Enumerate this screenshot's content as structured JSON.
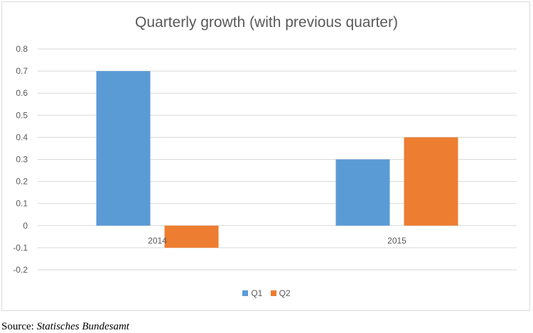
{
  "chart_data": {
    "type": "bar",
    "title": "Quarterly growth (with previous quarter)",
    "categories": [
      "2014",
      "2015"
    ],
    "series": [
      {
        "name": "Q1",
        "values": [
          0.7,
          0.3
        ],
        "color": "#5b9bd5"
      },
      {
        "name": "Q2",
        "values": [
          -0.1,
          0.4
        ],
        "color": "#ed7d31"
      }
    ],
    "ylim": [
      -0.2,
      0.8
    ],
    "yticks": [
      "0.8",
      "0.7",
      "0.6",
      "0.5",
      "0.4",
      "0.3",
      "0.2",
      "0.1",
      "0",
      "-0.1",
      "-0.2"
    ],
    "grid": true,
    "legend": "bottom"
  },
  "source": {
    "label": "Source: ",
    "name": "Statisches Bundesamt"
  }
}
